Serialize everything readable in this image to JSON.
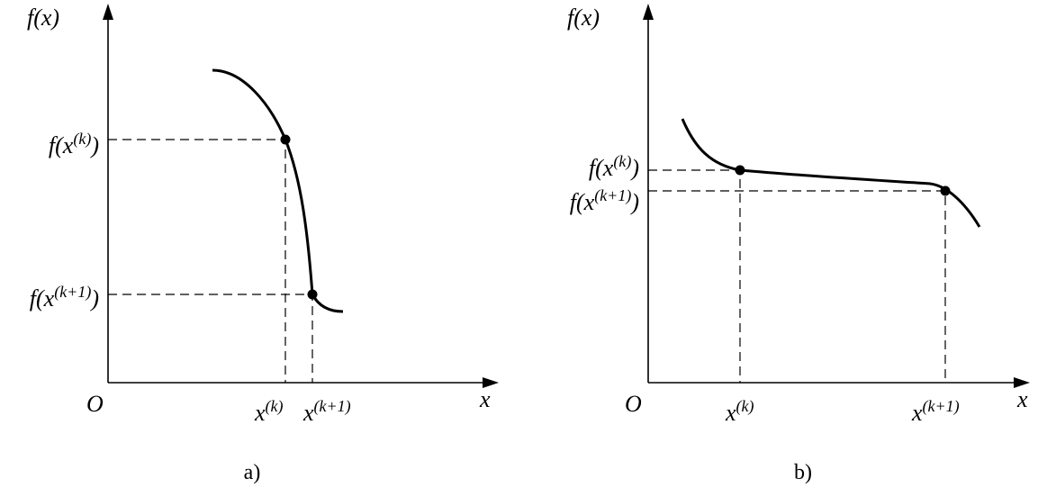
{
  "panels": [
    {
      "caption": "a)",
      "y_axis_label": "f(x)",
      "x_axis_label": "x",
      "origin": "O",
      "points": [
        {
          "x_label": {
            "main": "x",
            "sup": "(k)"
          },
          "y_label": {
            "main": "f(x",
            "sup": "(k)",
            "tail": ")"
          }
        },
        {
          "x_label": {
            "main": "x",
            "sup": "(k+1)"
          },
          "y_label": {
            "main": "f(x",
            "sup": "(k+1)",
            "tail": ")"
          }
        }
      ]
    },
    {
      "caption": "b)",
      "y_axis_label": "f(x)",
      "x_axis_label": "x",
      "origin": "O",
      "points": [
        {
          "x_label": {
            "main": "x",
            "sup": "(k)"
          },
          "y_label": {
            "main": "f(x",
            "sup": "(k)",
            "tail": ")"
          }
        },
        {
          "x_label": {
            "main": "x",
            "sup": "(k+1)"
          },
          "y_label": {
            "main": "f(x",
            "sup": "(k+1)",
            "tail": ")"
          }
        }
      ]
    }
  ]
}
